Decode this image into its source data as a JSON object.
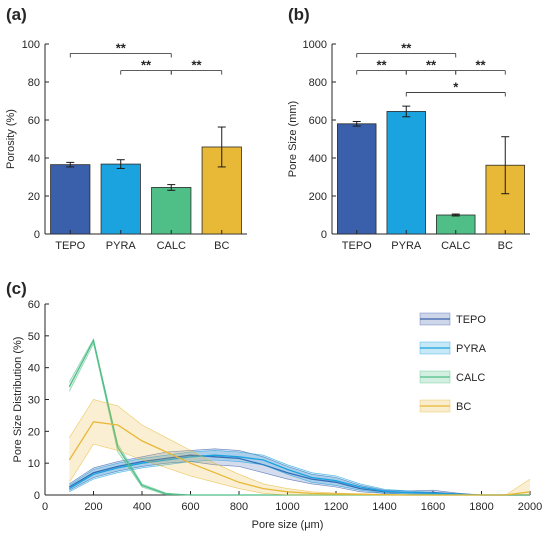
{
  "chart_data": [
    {
      "panel": "(a)",
      "type": "bar",
      "categories": [
        "TEPO",
        "PYRA",
        "CALC",
        "BC"
      ],
      "values": [
        36.5,
        36.8,
        24.5,
        45.8
      ],
      "errors": [
        1.2,
        2.3,
        1.5,
        10.5
      ],
      "colors": [
        "#3a5fab",
        "#1ba3e0",
        "#4fbe87",
        "#e8b837"
      ],
      "ylabel": "Porosity (%)",
      "ylim": [
        0,
        100
      ],
      "yticks": [
        "0",
        "20",
        "40",
        "60",
        "80",
        "100"
      ],
      "significance": [
        {
          "from": 0,
          "to": 2,
          "label": "**",
          "y": 95
        },
        {
          "from": 1,
          "to": 2,
          "label": "**",
          "y": 86
        },
        {
          "from": 2,
          "to": 3,
          "label": "**",
          "y": 86
        }
      ]
    },
    {
      "panel": "(b)",
      "type": "bar",
      "categories": [
        "TEPO",
        "PYRA",
        "CALC",
        "BC"
      ],
      "values": [
        580,
        645,
        100,
        362
      ],
      "errors": [
        12,
        28,
        5,
        150
      ],
      "colors": [
        "#3a5fab",
        "#1ba3e0",
        "#4fbe87",
        "#e8b837"
      ],
      "ylabel": "Pore Size (mm)",
      "ylim": [
        0,
        1000
      ],
      "yticks": [
        "0",
        "200",
        "400",
        "600",
        "800",
        "1000"
      ],
      "significance": [
        {
          "from": 0,
          "to": 2,
          "label": "**",
          "y": 950
        },
        {
          "from": 0,
          "to": 1,
          "label": "**",
          "y": 860
        },
        {
          "from": 1,
          "to": 2,
          "label": "**",
          "y": 860
        },
        {
          "from": 2,
          "to": 3,
          "label": "**",
          "y": 860
        },
        {
          "from": 1,
          "to": 3,
          "label": "*",
          "y": 745
        }
      ]
    },
    {
      "panel": "(c)",
      "type": "line",
      "xlabel": "Pore size (μm)",
      "ylabel": "Pore Size Distribution (%)",
      "xlim": [
        0,
        2000
      ],
      "ylim": [
        0,
        60
      ],
      "xticks": [
        "0",
        "200",
        "400",
        "600",
        "800",
        "1000",
        "1200",
        "1400",
        "1600",
        "1800",
        "2000"
      ],
      "yticks": [
        "0",
        "10",
        "20",
        "30",
        "40",
        "50",
        "60"
      ],
      "legend_position": "top-right",
      "series": [
        {
          "name": "TEPO",
          "color": "#3a5fab",
          "x": [
            100,
            200,
            300,
            400,
            500,
            600,
            700,
            800,
            900,
            1000,
            1100,
            1200,
            1300,
            1400,
            1500,
            1600,
            1700,
            1800,
            1900,
            2000
          ],
          "mean": [
            2.5,
            7,
            9,
            10.5,
            11.5,
            12.5,
            12,
            11.5,
            9.5,
            7,
            5,
            4,
            2,
            1,
            0.8,
            0.8,
            0.3,
            0,
            0,
            0
          ],
          "lower": [
            1.5,
            5.5,
            7.5,
            9,
            10,
            10.5,
            9.5,
            9,
            7,
            5,
            3.5,
            2.5,
            1,
            0.5,
            0.3,
            0.3,
            0,
            0,
            0,
            0
          ],
          "upper": [
            3.5,
            8.5,
            10.5,
            12,
            13.5,
            14,
            14.5,
            14,
            12,
            9,
            6.5,
            5.5,
            3,
            1.5,
            1.3,
            1.5,
            0.6,
            0,
            0,
            0
          ]
        },
        {
          "name": "PYRA",
          "color": "#1ba3e0",
          "x": [
            100,
            200,
            300,
            400,
            500,
            600,
            700,
            800,
            900,
            1000,
            1100,
            1200,
            1300,
            1400,
            1500,
            1600,
            1700,
            1800,
            1900,
            2000
          ],
          "mean": [
            2,
            6.5,
            8.5,
            10,
            11,
            12,
            12.5,
            12,
            11,
            8,
            5.5,
            4.5,
            2.5,
            1.2,
            0.8,
            0.5,
            0.2,
            0,
            0,
            0
          ],
          "lower": [
            1,
            5,
            7,
            8.5,
            9.5,
            10.5,
            11,
            10.5,
            9.5,
            6.5,
            4,
            3,
            1.5,
            0.6,
            0.3,
            0.2,
            0,
            0,
            0,
            0
          ],
          "upper": [
            3,
            8,
            10,
            11.5,
            12.5,
            13.5,
            14,
            13.5,
            12.5,
            9.5,
            7,
            6,
            3.5,
            1.8,
            1.3,
            0.8,
            0.4,
            0,
            0,
            0
          ]
        },
        {
          "name": "CALC",
          "color": "#4fbe87",
          "x": [
            100,
            200,
            300,
            400,
            500,
            600,
            700,
            800,
            900,
            1000,
            1100,
            1200,
            1300,
            1400,
            1500,
            1600,
            1700,
            1800,
            1900,
            2000
          ],
          "mean": [
            34,
            48.5,
            15,
            3,
            0.3,
            0,
            0,
            0,
            0,
            0,
            0,
            0,
            0,
            0,
            0,
            0,
            0,
            0,
            0,
            0
          ],
          "lower": [
            32.5,
            47.5,
            13.5,
            2.5,
            0,
            0,
            0,
            0,
            0,
            0,
            0,
            0,
            0,
            0,
            0,
            0,
            0,
            0,
            0,
            0
          ],
          "upper": [
            35.5,
            49,
            16,
            3.5,
            0.6,
            0,
            0,
            0,
            0,
            0,
            0,
            0,
            0,
            0,
            0,
            0,
            0,
            0,
            0,
            0
          ]
        },
        {
          "name": "BC",
          "color": "#e8b837",
          "x": [
            100,
            200,
            300,
            400,
            500,
            600,
            700,
            800,
            900,
            1000,
            1100,
            1200,
            1300,
            1400,
            1500,
            1600,
            1700,
            1800,
            1900,
            2000
          ],
          "mean": [
            11,
            23,
            22,
            17,
            13.5,
            10,
            7,
            4,
            2,
            1,
            0.5,
            0.3,
            0.2,
            0.1,
            0,
            0,
            0,
            0,
            0,
            1
          ],
          "lower": [
            4,
            16,
            14,
            11,
            8.5,
            6,
            4,
            2,
            0.5,
            0,
            0,
            0,
            0,
            0,
            0,
            0,
            0,
            0,
            0,
            0
          ],
          "upper": [
            18,
            30,
            28,
            22,
            18,
            14,
            10,
            6.5,
            3.5,
            2,
            1,
            0.6,
            0.4,
            0.2,
            0,
            0,
            0,
            0,
            0,
            5
          ]
        }
      ]
    }
  ]
}
